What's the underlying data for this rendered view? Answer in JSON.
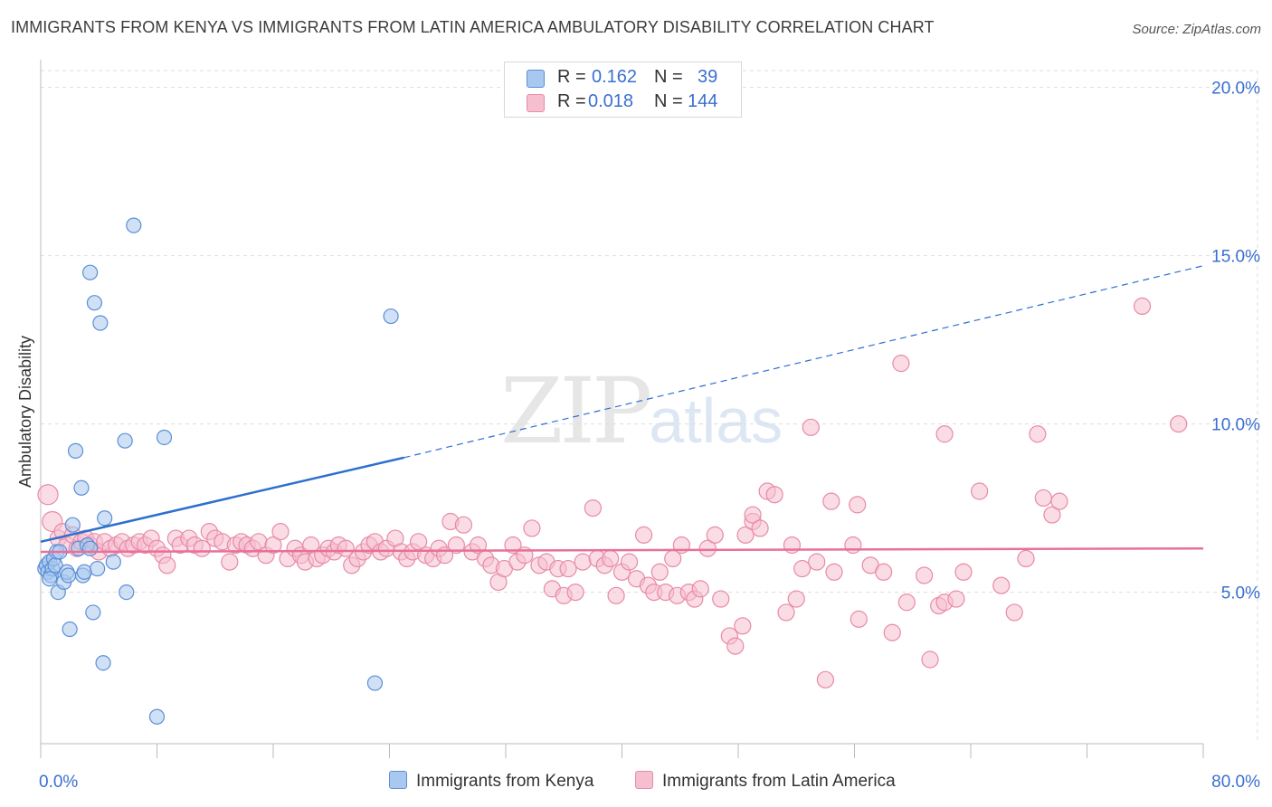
{
  "title": "IMMIGRANTS FROM KENYA VS IMMIGRANTS FROM LATIN AMERICA AMBULATORY DISABILITY CORRELATION CHART",
  "source": "Source: ZipAtlas.com",
  "watermark": {
    "zip": "ZIP",
    "atlas": "atlas"
  },
  "legend": [
    {
      "r_label": "R =",
      "r_value": "0.162",
      "n_label": "N =",
      "n_value": "39"
    },
    {
      "r_label": "R =",
      "r_value": "0.018",
      "n_label": "N =",
      "n_value": "144"
    }
  ],
  "colors": {
    "kenya_fill": "#a9c8ef",
    "kenya_stroke": "#5b8fd6",
    "kenya_line": "#2c6fcf",
    "latam_fill": "#f6bfd0",
    "latam_stroke": "#e88aa8",
    "latam_line": "#e8709a",
    "grid": "#dddddd",
    "axis_text": "#3a6fd0"
  },
  "chart_data": {
    "type": "scatter",
    "title": "IMMIGRANTS FROM KENYA VS IMMIGRANTS FROM LATIN AMERICA AMBULATORY DISABILITY CORRELATION CHART",
    "xlabel": "",
    "ylabel": "Ambulatory Disability",
    "xlim": [
      0,
      80
    ],
    "ylim": [
      0.5,
      20.5
    ],
    "x_tick_labels": [
      "0.0%",
      "80.0%"
    ],
    "y_ticks": [
      5,
      10,
      15,
      20
    ],
    "y_tick_labels": [
      "5.0%",
      "10.0%",
      "15.0%",
      "20.0%"
    ],
    "series": [
      {
        "name": "Immigrants from Kenya",
        "r": 0.162,
        "n": 39,
        "trend": {
          "x0": 0,
          "y0": 6.5,
          "x1": 25,
          "y1": 9.0,
          "dashed_to_x": 80,
          "dashed_to_y": 14.7
        },
        "points": [
          [
            0.3,
            5.7
          ],
          [
            0.4,
            5.8
          ],
          [
            0.5,
            5.6
          ],
          [
            0.6,
            5.9
          ],
          [
            0.7,
            5.5
          ],
          [
            0.8,
            5.7
          ],
          [
            0.9,
            6.0
          ],
          [
            1.0,
            5.8
          ],
          [
            1.1,
            6.2
          ],
          [
            1.2,
            5.0
          ],
          [
            1.3,
            6.2
          ],
          [
            1.6,
            5.3
          ],
          [
            1.8,
            5.6
          ],
          [
            1.9,
            5.5
          ],
          [
            2.0,
            3.9
          ],
          [
            2.2,
            7.0
          ],
          [
            2.4,
            9.2
          ],
          [
            2.6,
            6.3
          ],
          [
            2.8,
            8.1
          ],
          [
            2.9,
            5.5
          ],
          [
            3.0,
            5.6
          ],
          [
            3.2,
            6.4
          ],
          [
            3.4,
            6.3
          ],
          [
            3.6,
            4.4
          ],
          [
            3.7,
            13.6
          ],
          [
            3.9,
            5.7
          ],
          [
            4.1,
            13.0
          ],
          [
            4.3,
            2.9
          ],
          [
            4.4,
            7.2
          ],
          [
            3.4,
            14.5
          ],
          [
            5.0,
            5.9
          ],
          [
            5.8,
            9.5
          ],
          [
            5.9,
            5.0
          ],
          [
            6.4,
            15.9
          ],
          [
            8.0,
            1.3
          ],
          [
            8.5,
            9.6
          ],
          [
            24.1,
            13.2
          ],
          [
            23.0,
            2.3
          ],
          [
            0.6,
            5.4
          ]
        ]
      },
      {
        "name": "Immigrants from Latin America",
        "r": 0.018,
        "n": 144,
        "trend": {
          "x0": 0,
          "y0": 6.2,
          "x1": 80,
          "y1": 6.3
        },
        "points": [
          [
            0.5,
            7.9
          ],
          [
            0.8,
            7.1
          ],
          [
            1.2,
            6.6
          ],
          [
            1.5,
            6.8
          ],
          [
            1.8,
            6.4
          ],
          [
            2.2,
            6.7
          ],
          [
            2.5,
            6.3
          ],
          [
            2.8,
            6.5
          ],
          [
            3.1,
            6.6
          ],
          [
            3.4,
            6.4
          ],
          [
            3.7,
            6.5
          ],
          [
            4.0,
            6.2
          ],
          [
            4.4,
            6.5
          ],
          [
            4.8,
            6.3
          ],
          [
            5.2,
            6.4
          ],
          [
            5.6,
            6.5
          ],
          [
            6.0,
            6.3
          ],
          [
            6.4,
            6.4
          ],
          [
            6.8,
            6.5
          ],
          [
            7.2,
            6.4
          ],
          [
            7.6,
            6.6
          ],
          [
            8.0,
            6.3
          ],
          [
            8.4,
            6.1
          ],
          [
            8.7,
            5.8
          ],
          [
            9.3,
            6.6
          ],
          [
            9.6,
            6.4
          ],
          [
            10.2,
            6.6
          ],
          [
            10.6,
            6.4
          ],
          [
            11.1,
            6.3
          ],
          [
            11.6,
            6.8
          ],
          [
            12.0,
            6.6
          ],
          [
            12.5,
            6.5
          ],
          [
            13.0,
            5.9
          ],
          [
            13.4,
            6.4
          ],
          [
            13.8,
            6.5
          ],
          [
            14.2,
            6.4
          ],
          [
            14.6,
            6.3
          ],
          [
            15.0,
            6.5
          ],
          [
            15.5,
            6.1
          ],
          [
            16.0,
            6.4
          ],
          [
            16.5,
            6.8
          ],
          [
            17.0,
            6.0
          ],
          [
            17.5,
            6.3
          ],
          [
            17.9,
            6.1
          ],
          [
            18.2,
            5.9
          ],
          [
            18.6,
            6.4
          ],
          [
            19.0,
            6.0
          ],
          [
            19.4,
            6.1
          ],
          [
            19.8,
            6.3
          ],
          [
            20.2,
            6.2
          ],
          [
            20.5,
            6.4
          ],
          [
            21.0,
            6.3
          ],
          [
            21.4,
            5.8
          ],
          [
            21.8,
            6.0
          ],
          [
            22.2,
            6.2
          ],
          [
            22.6,
            6.4
          ],
          [
            23.0,
            6.5
          ],
          [
            23.4,
            6.2
          ],
          [
            23.8,
            6.3
          ],
          [
            24.4,
            6.6
          ],
          [
            24.8,
            6.2
          ],
          [
            25.2,
            6.0
          ],
          [
            25.6,
            6.2
          ],
          [
            26.0,
            6.5
          ],
          [
            26.5,
            6.1
          ],
          [
            27.0,
            6.0
          ],
          [
            27.4,
            6.3
          ],
          [
            27.8,
            6.1
          ],
          [
            28.2,
            7.1
          ],
          [
            28.6,
            6.4
          ],
          [
            29.1,
            7.0
          ],
          [
            29.7,
            6.2
          ],
          [
            30.1,
            6.4
          ],
          [
            30.6,
            6.0
          ],
          [
            31.0,
            5.8
          ],
          [
            31.5,
            5.3
          ],
          [
            31.9,
            5.7
          ],
          [
            32.5,
            6.4
          ],
          [
            32.8,
            5.9
          ],
          [
            33.3,
            6.1
          ],
          [
            33.8,
            6.9
          ],
          [
            34.3,
            5.8
          ],
          [
            34.8,
            5.9
          ],
          [
            35.2,
            5.1
          ],
          [
            35.6,
            5.7
          ],
          [
            36.0,
            4.9
          ],
          [
            36.3,
            5.7
          ],
          [
            36.8,
            5.0
          ],
          [
            37.3,
            5.9
          ],
          [
            38.0,
            7.5
          ],
          [
            38.3,
            6.0
          ],
          [
            38.8,
            5.8
          ],
          [
            39.2,
            6.0
          ],
          [
            39.6,
            4.9
          ],
          [
            40.0,
            5.6
          ],
          [
            40.5,
            5.9
          ],
          [
            41.0,
            5.4
          ],
          [
            41.5,
            6.7
          ],
          [
            41.8,
            5.2
          ],
          [
            42.2,
            5.0
          ],
          [
            42.6,
            5.6
          ],
          [
            43.0,
            5.0
          ],
          [
            43.5,
            6.0
          ],
          [
            43.8,
            4.9
          ],
          [
            44.1,
            6.4
          ],
          [
            44.6,
            5.0
          ],
          [
            45.0,
            4.8
          ],
          [
            45.4,
            5.1
          ],
          [
            45.9,
            6.3
          ],
          [
            46.4,
            6.7
          ],
          [
            46.8,
            4.8
          ],
          [
            47.4,
            3.7
          ],
          [
            47.8,
            3.4
          ],
          [
            48.3,
            4.0
          ],
          [
            48.5,
            6.7
          ],
          [
            49.0,
            7.1
          ],
          [
            49.0,
            7.3
          ],
          [
            49.5,
            6.9
          ],
          [
            50.0,
            8.0
          ],
          [
            50.5,
            7.9
          ],
          [
            51.3,
            4.4
          ],
          [
            51.7,
            6.4
          ],
          [
            52.0,
            4.8
          ],
          [
            52.4,
            5.7
          ],
          [
            53.0,
            9.9
          ],
          [
            53.4,
            5.9
          ],
          [
            54.0,
            2.4
          ],
          [
            54.4,
            7.7
          ],
          [
            54.6,
            5.6
          ],
          [
            55.9,
            6.4
          ],
          [
            56.2,
            7.6
          ],
          [
            56.3,
            4.2
          ],
          [
            57.1,
            5.8
          ],
          [
            58.0,
            5.6
          ],
          [
            58.6,
            3.8
          ],
          [
            59.2,
            11.8
          ],
          [
            59.6,
            4.7
          ],
          [
            60.8,
            5.5
          ],
          [
            61.2,
            3.0
          ],
          [
            61.8,
            4.6
          ],
          [
            62.2,
            9.7
          ],
          [
            62.2,
            4.7
          ],
          [
            63.0,
            4.8
          ],
          [
            63.5,
            5.6
          ],
          [
            64.6,
            8.0
          ],
          [
            66.1,
            5.2
          ],
          [
            67.0,
            4.4
          ],
          [
            67.8,
            6.0
          ],
          [
            68.6,
            9.7
          ],
          [
            69.0,
            7.8
          ],
          [
            69.6,
            7.3
          ],
          [
            70.1,
            7.7
          ],
          [
            75.8,
            13.5
          ],
          [
            78.3,
            10.0
          ]
        ]
      }
    ]
  },
  "bottom_legend": [
    {
      "label": "Immigrants from Kenya"
    },
    {
      "label": "Immigrants from Latin America"
    }
  ]
}
